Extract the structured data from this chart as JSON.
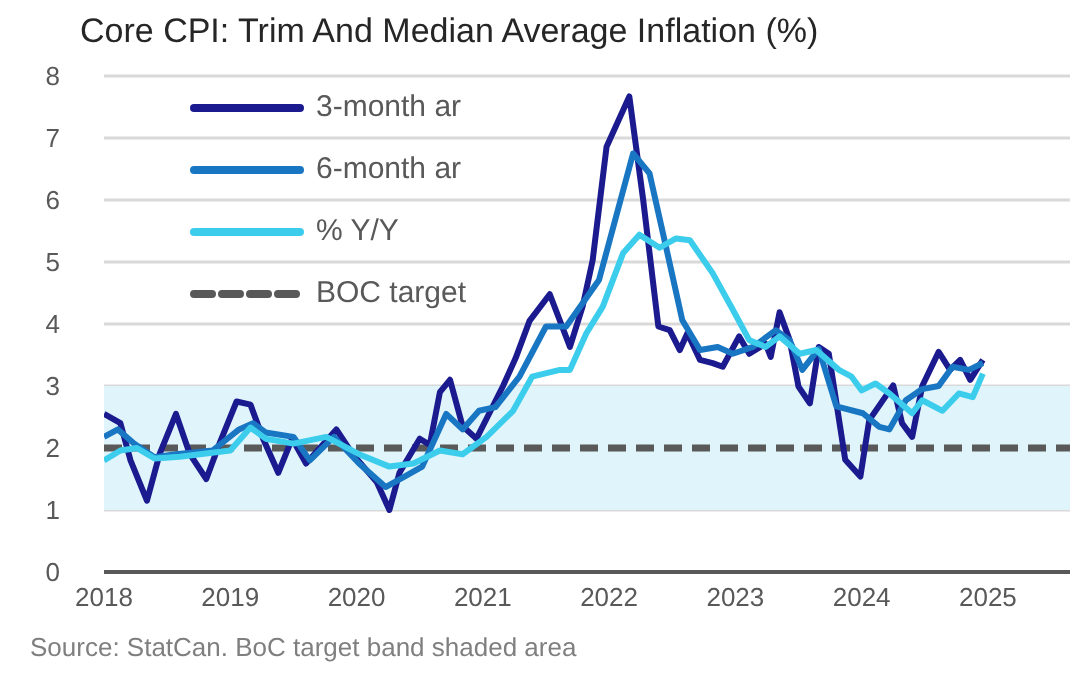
{
  "chart_data": {
    "type": "line",
    "title": "Core CPI: Trim And Median Average Inflation (%)",
    "annotations": [
      "Source: StatCan. BoC target band shaded area"
    ],
    "xlim": [
      2018,
      2025.65
    ],
    "xticks": [
      2018,
      2019,
      2020,
      2021,
      2022,
      2023,
      2024,
      2025
    ],
    "ylim": [
      0,
      8
    ],
    "yticks": [
      0,
      1,
      2,
      3,
      4,
      5,
      6,
      7,
      8
    ],
    "grid": "y",
    "legend": "top left",
    "line_style": "solid",
    "marker": "none",
    "ref_lines": [
      {
        "axis": "y",
        "value": 2,
        "label": "BOC target",
        "color": "#595959",
        "line_style": "dashed"
      }
    ],
    "bands": [
      {
        "axis": "y",
        "from": 1,
        "to": 3,
        "color": "#e0f5fb"
      }
    ],
    "series": [
      {
        "name": "3-month ar",
        "color": "#1b1b8f",
        "x": [
          2018.0,
          2018.13,
          2018.21,
          2018.34,
          2018.44,
          2018.57,
          2018.68,
          2018.81,
          2018.92,
          2019.05,
          2019.16,
          2019.26,
          2019.38,
          2019.49,
          2019.6,
          2019.84,
          2019.97,
          2020.16,
          2020.26,
          2020.34,
          2020.5,
          2020.58,
          2020.66,
          2020.74,
          2020.84,
          2020.95,
          2021.16,
          2021.26,
          2021.37,
          2021.53,
          2021.69,
          2021.79,
          2021.87,
          2021.98,
          2022.16,
          2022.27,
          2022.39,
          2022.48,
          2022.56,
          2022.62,
          2022.72,
          2022.82,
          2022.9,
          2023.03,
          2023.11,
          2023.24,
          2023.28,
          2023.35,
          2023.43,
          2023.5,
          2023.59,
          2023.66,
          2023.74,
          2023.87,
          2023.99,
          2024.06,
          2024.25,
          2024.32,
          2024.4,
          2024.48,
          2024.61,
          2024.7,
          2024.78,
          2024.86,
          2024.96
        ],
        "values": [
          2.55,
          2.4,
          1.8,
          1.15,
          1.9,
          2.55,
          1.9,
          1.5,
          2.1,
          2.75,
          2.7,
          2.15,
          1.6,
          2.15,
          1.75,
          2.3,
          1.9,
          1.45,
          1.0,
          1.6,
          2.15,
          2.05,
          2.9,
          3.1,
          2.35,
          2.15,
          3.0,
          3.45,
          4.05,
          4.48,
          3.63,
          4.28,
          5.03,
          6.86,
          7.67,
          6.0,
          3.96,
          3.9,
          3.58,
          3.85,
          3.42,
          3.37,
          3.31,
          3.8,
          3.52,
          3.68,
          3.47,
          4.19,
          3.74,
          2.99,
          2.72,
          3.63,
          3.52,
          1.81,
          1.54,
          2.45,
          3.01,
          2.4,
          2.18,
          3.0,
          3.55,
          3.26,
          3.42,
          3.1,
          3.42
        ]
      },
      {
        "name": "6-month ar",
        "color": "#1976c2",
        "x": [
          2018.0,
          2018.11,
          2018.24,
          2018.4,
          2018.57,
          2018.86,
          2019.07,
          2019.18,
          2019.28,
          2019.5,
          2019.63,
          2019.82,
          2020.02,
          2020.23,
          2020.39,
          2020.52,
          2020.71,
          2020.84,
          2020.97,
          2021.1,
          2021.29,
          2021.5,
          2021.66,
          2021.92,
          2022.19,
          2022.32,
          2022.45,
          2022.58,
          2022.72,
          2022.86,
          2022.98,
          2023.14,
          2023.32,
          2023.43,
          2023.53,
          2023.66,
          2023.8,
          2024.01,
          2024.14,
          2024.22,
          2024.35,
          2024.48,
          2024.61,
          2024.72,
          2024.85,
          2024.96
        ],
        "values": [
          2.18,
          2.3,
          2.07,
          1.85,
          1.9,
          1.96,
          2.3,
          2.4,
          2.25,
          2.18,
          1.8,
          2.18,
          1.75,
          1.37,
          1.55,
          1.7,
          2.55,
          2.3,
          2.6,
          2.66,
          3.15,
          3.96,
          3.96,
          4.71,
          6.75,
          6.43,
          5.25,
          4.06,
          3.58,
          3.63,
          3.52,
          3.63,
          3.9,
          3.74,
          3.26,
          3.6,
          2.67,
          2.56,
          2.34,
          2.3,
          2.77,
          2.95,
          3.0,
          3.31,
          3.26,
          3.37
        ]
      },
      {
        "name": "% Y/Y",
        "color": "#3dcdec",
        "x": [
          2018.0,
          2018.13,
          2018.26,
          2018.4,
          2018.6,
          2018.76,
          2019.0,
          2019.16,
          2019.28,
          2019.5,
          2019.76,
          2020.02,
          2020.26,
          2020.45,
          2020.66,
          2020.84,
          2021.03,
          2021.24,
          2021.39,
          2021.61,
          2021.69,
          2021.82,
          2021.95,
          2022.11,
          2022.24,
          2022.4,
          2022.53,
          2022.64,
          2022.82,
          2022.98,
          2023.11,
          2023.24,
          2023.35,
          2023.51,
          2023.64,
          2023.82,
          2023.92,
          2024.0,
          2024.11,
          2024.22,
          2024.4,
          2024.48,
          2024.64,
          2024.77,
          2024.88,
          2024.96
        ],
        "values": [
          1.8,
          1.96,
          2.0,
          1.83,
          1.86,
          1.9,
          1.96,
          2.33,
          2.15,
          2.07,
          2.18,
          1.9,
          1.7,
          1.75,
          1.96,
          1.9,
          2.18,
          2.6,
          3.15,
          3.26,
          3.26,
          3.85,
          4.28,
          5.14,
          5.44,
          5.23,
          5.38,
          5.35,
          4.82,
          4.23,
          3.74,
          3.63,
          3.8,
          3.52,
          3.58,
          3.26,
          3.15,
          2.93,
          3.04,
          2.88,
          2.56,
          2.77,
          2.6,
          2.88,
          2.82,
          3.2
        ]
      }
    ]
  }
}
